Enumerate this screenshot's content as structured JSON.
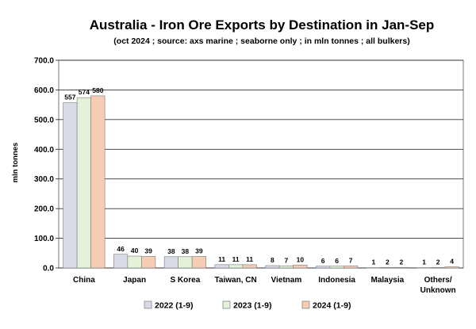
{
  "chart_data": {
    "type": "bar",
    "title": "Australia - Iron Ore Exports by Destination in Jan-Sep",
    "subtitle": "(oct 2024 ; source: axs marine ; seaborne only ; in mln tonnes ; all bulkers)",
    "ylabel": "mln tonnes",
    "xlabel": "",
    "ylim": [
      0,
      700
    ],
    "yticks": [
      "0.0",
      "100.0",
      "200.0",
      "300.0",
      "400.0",
      "500.0",
      "600.0",
      "700.0"
    ],
    "grid": true,
    "legend_position": "bottom",
    "categories": [
      [
        "China"
      ],
      [
        "Japan"
      ],
      [
        "S Korea"
      ],
      [
        "Taiwan, CN"
      ],
      [
        "Vietnam"
      ],
      [
        "Indonesia"
      ],
      [
        "Malaysia"
      ],
      [
        "Others/",
        "Unknown"
      ]
    ],
    "series": [
      {
        "name": "2022 (1-9)",
        "color": "#d9dce6",
        "values": [
          557,
          46,
          38,
          11,
          8,
          6,
          1,
          1
        ]
      },
      {
        "name": "2023 (1-9)",
        "color": "#e3f2d9",
        "values": [
          574,
          40,
          38,
          11,
          7,
          6,
          2,
          2
        ]
      },
      {
        "name": "2024 (1-9)",
        "color": "#f6cdb3",
        "values": [
          580,
          39,
          39,
          11,
          10,
          7,
          2,
          4
        ]
      }
    ]
  }
}
